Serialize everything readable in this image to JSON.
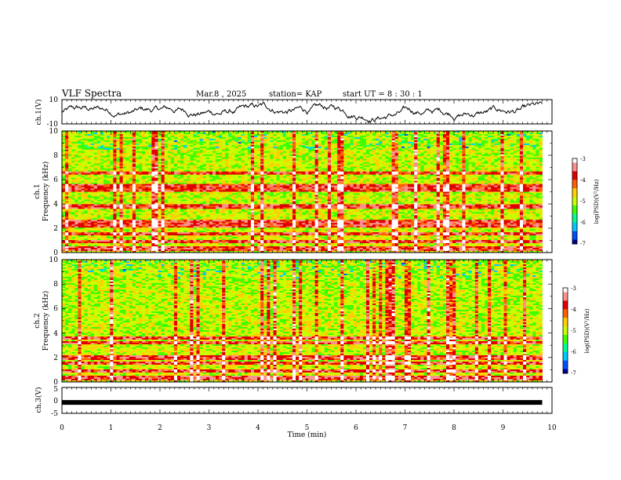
{
  "header": {
    "title": "VLF Spectra",
    "date": "Mar.8  , 2025",
    "station": "station= KAP",
    "start_ut": "start  UT  =   8  : 30 : 1"
  },
  "colors": {
    "background": "#ffffff",
    "axes": "#000000",
    "waveform": "#000000",
    "colormap": [
      "#00008f",
      "#0050ff",
      "#00c8ff",
      "#00ff90",
      "#40ff00",
      "#c8ff00",
      "#ffd000",
      "#ff6000",
      "#e00000",
      "#ff9090",
      "#ffffff"
    ]
  },
  "chart_data": [
    {
      "type": "line",
      "name": "ch1-waveform",
      "ylabel": "ch.1(V)",
      "ylim": [
        -10,
        10
      ],
      "yticks": [
        "10",
        "-10"
      ],
      "xlim": [
        0,
        10
      ],
      "data_extent_min": 9.8,
      "description_of_signal": "random-walk voltage trace roughly between -8 and 7 V"
    },
    {
      "type": "heatmap",
      "name": "ch1-spectrogram",
      "ylabel_top": "ch.1",
      "ylabel": "Frequency  (kHz)",
      "ylim": [
        0,
        10
      ],
      "yticks": [
        "0",
        "2",
        "4",
        "6",
        "8",
        "10"
      ],
      "xlim": [
        0,
        10
      ],
      "data_extent_min": 9.8,
      "colorbar": {
        "label": "log(PSD)(V²/Hz)",
        "range": [
          -7,
          -3
        ],
        "ticks": [
          "-3",
          "-4",
          "-5",
          "-6",
          "-7"
        ]
      },
      "strong_bands_khz": [
        0.3,
        0.9,
        1.5,
        2.2,
        2.5,
        3.7,
        3.85,
        5.2,
        5.5,
        6.5
      ]
    },
    {
      "type": "heatmap",
      "name": "ch2-spectrogram",
      "ylabel_top": "ch.2",
      "ylabel": "Frequency  (kHz)",
      "ylim": [
        0,
        10
      ],
      "yticks": [
        "0",
        "2",
        "4",
        "6",
        "8",
        "10"
      ],
      "xlim": [
        0,
        10
      ],
      "data_extent_min": 9.8,
      "colorbar": {
        "label": "log(PSD)(V²/Hz)",
        "range": [
          -7,
          -3
        ],
        "ticks": [
          "-3",
          "-4",
          "-5",
          "-6",
          "-7"
        ]
      },
      "strong_bands_khz": [
        0.3,
        0.9,
        1.5,
        2.0,
        3.2,
        3.6
      ]
    },
    {
      "type": "line",
      "name": "ch3-waveform",
      "ylabel": "ch.3(V)",
      "ylim": [
        -5,
        5
      ],
      "yticks": [
        "5",
        "0",
        "-5"
      ],
      "xlim": [
        0,
        10
      ],
      "data_extent_min": 9.8,
      "level_v": -0.8
    }
  ],
  "xaxis": {
    "label": "Time  (min)",
    "ticks": [
      "0",
      "1",
      "2",
      "3",
      "4",
      "5",
      "6",
      "7",
      "8",
      "9",
      "10"
    ]
  }
}
